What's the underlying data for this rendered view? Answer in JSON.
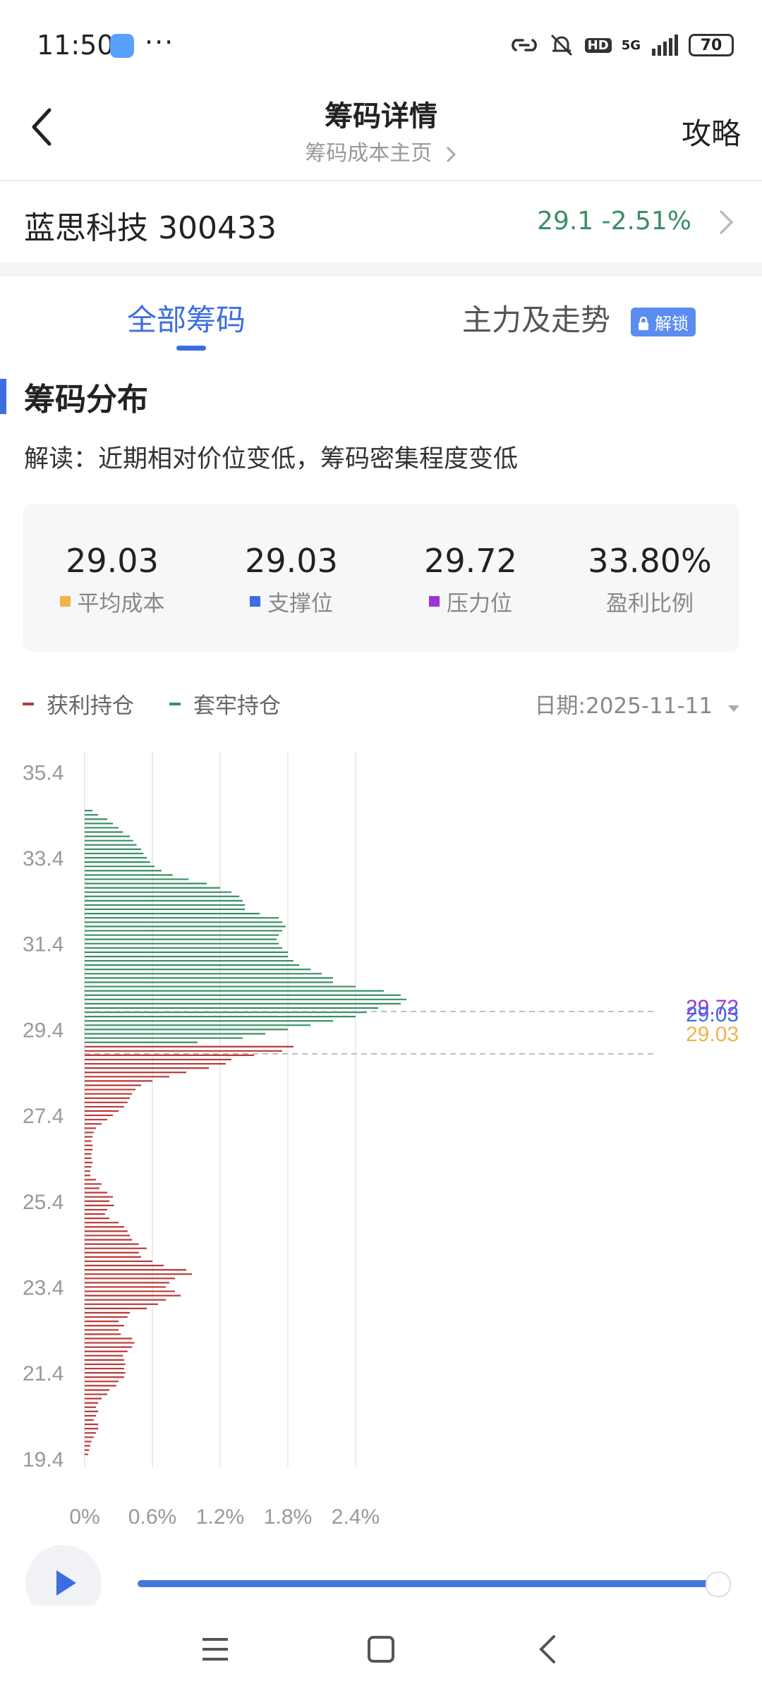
{
  "status_bar": {
    "time": "11:50",
    "dots": "···",
    "signal": "5G",
    "hd": "HD",
    "battery": "70"
  },
  "header": {
    "title": "筹码详情",
    "subtitle": "筹码成本主页",
    "right_label": "攻略"
  },
  "stock": {
    "name": "蓝思科技 300433",
    "price_change": "29.1  -2.51%"
  },
  "tabs": [
    {
      "label": "全部筹码"
    },
    {
      "label": "主力及走势",
      "badge": "解锁"
    }
  ],
  "section": {
    "title": "筹码分布",
    "interpretation": "解读：近期相对价位变低，筹码密集程度变低"
  },
  "stats": [
    {
      "value": "29.03",
      "label": "平均成本",
      "color": "#f0b44a"
    },
    {
      "value": "29.03",
      "label": "支撑位",
      "color": "#3b6ee0"
    },
    {
      "value": "29.72",
      "label": "压力位",
      "color": "#9b35d6"
    },
    {
      "value": "33.80%",
      "label": "盈利比例"
    }
  ],
  "legend": {
    "profit": "获利持仓",
    "trapped": "套牢持仓",
    "profit_color": "#b83a3a",
    "trapped_color": "#3a8f64",
    "date": "日期:2025-11-11"
  },
  "chart_data": {
    "type": "bar",
    "orientation": "horizontal",
    "y_ticks": [
      "35.4",
      "33.4",
      "31.4",
      "29.4",
      "27.4",
      "25.4",
      "23.4",
      "21.4",
      "19.4"
    ],
    "x_ticks": [
      "0%",
      "0.6%",
      "1.2%",
      "1.8%",
      "2.4%"
    ],
    "xlim": [
      0,
      3.0
    ],
    "ylim": [
      19.2,
      35.8
    ],
    "split_price": 29.1,
    "reference_labels": [
      {
        "text": "29.72",
        "price": 29.72,
        "color": "#9b35d6"
      },
      {
        "text": "29.03",
        "price": 29.03,
        "color": "#3b6ee0"
      },
      {
        "text": "29.03",
        "price": 29.03,
        "color": "#f0b44a"
      }
    ],
    "series": [
      {
        "name": "套牢持仓",
        "color": "#3a8f64",
        "points": [
          [
            34.5,
            0.07
          ],
          [
            34.4,
            0.12
          ],
          [
            34.3,
            0.2
          ],
          [
            34.2,
            0.25
          ],
          [
            34.1,
            0.3
          ],
          [
            34.0,
            0.34
          ],
          [
            33.9,
            0.4
          ],
          [
            33.8,
            0.43
          ],
          [
            33.7,
            0.46
          ],
          [
            33.6,
            0.5
          ],
          [
            33.5,
            0.52
          ],
          [
            33.4,
            0.55
          ],
          [
            33.3,
            0.58
          ],
          [
            33.2,
            0.62
          ],
          [
            33.1,
            0.68
          ],
          [
            33.0,
            0.78
          ],
          [
            32.9,
            0.92
          ],
          [
            32.8,
            1.08
          ],
          [
            32.7,
            1.2
          ],
          [
            32.6,
            1.3
          ],
          [
            32.5,
            1.37
          ],
          [
            32.4,
            1.4
          ],
          [
            32.3,
            1.42
          ],
          [
            32.2,
            1.42
          ],
          [
            32.1,
            1.55
          ],
          [
            32.0,
            1.72
          ],
          [
            31.9,
            1.75
          ],
          [
            31.8,
            1.78
          ],
          [
            31.7,
            1.75
          ],
          [
            31.6,
            1.72
          ],
          [
            31.5,
            1.7
          ],
          [
            31.4,
            1.72
          ],
          [
            31.3,
            1.75
          ],
          [
            31.2,
            1.8
          ],
          [
            31.1,
            1.8
          ],
          [
            31.0,
            1.85
          ],
          [
            30.9,
            1.9
          ],
          [
            30.8,
            2.0
          ],
          [
            30.7,
            2.1
          ],
          [
            30.6,
            2.2
          ],
          [
            30.5,
            2.2
          ],
          [
            30.4,
            2.4
          ],
          [
            30.3,
            2.65
          ],
          [
            30.2,
            2.8
          ],
          [
            30.1,
            2.85
          ],
          [
            30.0,
            2.8
          ],
          [
            29.9,
            2.6
          ],
          [
            29.8,
            2.5
          ],
          [
            29.7,
            2.4
          ],
          [
            29.6,
            2.2
          ],
          [
            29.5,
            2.0
          ],
          [
            29.4,
            1.8
          ],
          [
            29.3,
            1.6
          ],
          [
            29.2,
            1.4
          ],
          [
            29.1,
            1.0
          ]
        ]
      },
      {
        "name": "获利持仓",
        "color": "#b83a3a",
        "points": [
          [
            29.0,
            1.85
          ],
          [
            28.9,
            1.75
          ],
          [
            28.8,
            1.5
          ],
          [
            28.7,
            1.3
          ],
          [
            28.6,
            1.25
          ],
          [
            28.5,
            1.1
          ],
          [
            28.4,
            0.9
          ],
          [
            28.3,
            0.75
          ],
          [
            28.2,
            0.6
          ],
          [
            28.1,
            0.5
          ],
          [
            28.0,
            0.45
          ],
          [
            27.9,
            0.42
          ],
          [
            27.8,
            0.4
          ],
          [
            27.7,
            0.38
          ],
          [
            27.6,
            0.35
          ],
          [
            27.5,
            0.3
          ],
          [
            27.4,
            0.25
          ],
          [
            27.3,
            0.2
          ],
          [
            27.2,
            0.15
          ],
          [
            27.1,
            0.1
          ],
          [
            27.0,
            0.08
          ],
          [
            26.9,
            0.07
          ],
          [
            26.8,
            0.06
          ],
          [
            26.7,
            0.07
          ],
          [
            26.6,
            0.07
          ],
          [
            26.5,
            0.06
          ],
          [
            26.4,
            0.06
          ],
          [
            26.3,
            0.07
          ],
          [
            26.2,
            0.06
          ],
          [
            26.1,
            0.05
          ],
          [
            26.0,
            0.05
          ],
          [
            25.9,
            0.1
          ],
          [
            25.8,
            0.15
          ],
          [
            25.7,
            0.13
          ],
          [
            25.6,
            0.2
          ],
          [
            25.5,
            0.25
          ],
          [
            25.4,
            0.22
          ],
          [
            25.3,
            0.26
          ],
          [
            25.2,
            0.2
          ],
          [
            25.1,
            0.18
          ],
          [
            25.0,
            0.22
          ],
          [
            24.9,
            0.3
          ],
          [
            24.8,
            0.35
          ],
          [
            24.7,
            0.38
          ],
          [
            24.6,
            0.4
          ],
          [
            24.5,
            0.42
          ],
          [
            24.4,
            0.48
          ],
          [
            24.3,
            0.55
          ],
          [
            24.2,
            0.48
          ],
          [
            24.1,
            0.5
          ],
          [
            24.0,
            0.6
          ],
          [
            23.9,
            0.7
          ],
          [
            23.8,
            0.9
          ],
          [
            23.7,
            0.95
          ],
          [
            23.6,
            0.8
          ],
          [
            23.5,
            0.75
          ],
          [
            23.4,
            0.72
          ],
          [
            23.3,
            0.8
          ],
          [
            23.2,
            0.85
          ],
          [
            23.1,
            0.72
          ],
          [
            23.0,
            0.65
          ],
          [
            22.9,
            0.55
          ],
          [
            22.8,
            0.4
          ],
          [
            22.7,
            0.38
          ],
          [
            22.6,
            0.3
          ],
          [
            22.5,
            0.35
          ],
          [
            22.4,
            0.3
          ],
          [
            22.3,
            0.32
          ],
          [
            22.2,
            0.42
          ],
          [
            22.1,
            0.44
          ],
          [
            22.0,
            0.42
          ],
          [
            21.9,
            0.38
          ],
          [
            21.8,
            0.34
          ],
          [
            21.7,
            0.35
          ],
          [
            21.6,
            0.36
          ],
          [
            21.5,
            0.35
          ],
          [
            21.4,
            0.36
          ],
          [
            21.3,
            0.35
          ],
          [
            21.2,
            0.3
          ],
          [
            21.1,
            0.28
          ],
          [
            21.0,
            0.22
          ],
          [
            20.9,
            0.2
          ],
          [
            20.8,
            0.15
          ],
          [
            20.7,
            0.12
          ],
          [
            20.6,
            0.1
          ],
          [
            20.5,
            0.12
          ],
          [
            20.4,
            0.1
          ],
          [
            20.3,
            0.08
          ],
          [
            20.2,
            0.12
          ],
          [
            20.1,
            0.12
          ],
          [
            20.0,
            0.1
          ],
          [
            19.9,
            0.08
          ],
          [
            19.8,
            0.06
          ],
          [
            19.7,
            0.05
          ],
          [
            19.6,
            0.04
          ],
          [
            19.5,
            0.03
          ]
        ]
      }
    ]
  },
  "player": {
    "progress": 0.98
  },
  "nav": {
    "menu": "menu-icon",
    "home": "home-icon",
    "back": "back-icon"
  }
}
